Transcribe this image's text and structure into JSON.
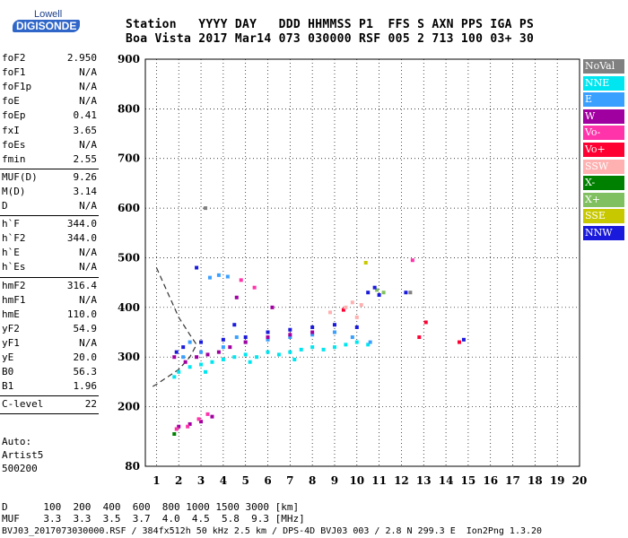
{
  "logo": {
    "line1": "Lowell",
    "line2": "DIGISONDE"
  },
  "header": {
    "line1": "Station   YYYY DAY   DDD HHMMSS P1  FFS S AXN PPS IGA PS",
    "line2": "Boa Vista 2017 Mar14 073 030000 RSF 005 2 713 100 03+ 30"
  },
  "params": [
    {
      "group": [
        {
          "name": "foF2",
          "value": "2.950"
        },
        {
          "name": "foF1",
          "value": "N/A"
        },
        {
          "name": "foF1p",
          "value": "N/A"
        },
        {
          "name": "foE",
          "value": "N/A"
        },
        {
          "name": "foEp",
          "value": "0.41"
        },
        {
          "name": "fxI",
          "value": "3.65"
        },
        {
          "name": "foEs",
          "value": "N/A"
        },
        {
          "name": "fmin",
          "value": "2.55"
        }
      ]
    },
    {
      "group": [
        {
          "name": "MUF(D)",
          "value": "9.26"
        },
        {
          "name": "M(D)",
          "value": "3.14"
        },
        {
          "name": "D",
          "value": "N/A"
        }
      ]
    },
    {
      "group": [
        {
          "name": "h`F",
          "value": "344.0"
        },
        {
          "name": "h`F2",
          "value": "344.0"
        },
        {
          "name": "h`E",
          "value": "N/A"
        },
        {
          "name": "h`Es",
          "value": "N/A"
        }
      ]
    },
    {
      "group": [
        {
          "name": "hmF2",
          "value": "316.4"
        },
        {
          "name": "hmF1",
          "value": "N/A"
        },
        {
          "name": "hmE",
          "value": "110.0"
        },
        {
          "name": "yF2",
          "value": "54.9"
        },
        {
          "name": "yF1",
          "value": "N/A"
        },
        {
          "name": "yE",
          "value": "20.0"
        },
        {
          "name": "B0",
          "value": "56.3"
        },
        {
          "name": "B1",
          "value": "1.96"
        }
      ]
    },
    {
      "group": [
        {
          "name": "C-level",
          "value": "22"
        }
      ]
    }
  ],
  "autoscale": {
    "line1": "Auto:",
    "line2": "Artist5",
    "line3": "500200"
  },
  "legend": [
    {
      "label": "NoVal",
      "color": "#808080"
    },
    {
      "label": "NNE",
      "color": "#00e6f0"
    },
    {
      "label": "E",
      "color": "#3aa0ff"
    },
    {
      "label": "W",
      "color": "#a000a0"
    },
    {
      "label": "Vo-",
      "color": "#ff33aa"
    },
    {
      "label": "Vo+",
      "color": "#ff0033"
    },
    {
      "label": "SSW",
      "color": "#ffb0b0"
    },
    {
      "label": "X-",
      "color": "#008000"
    },
    {
      "label": "X+",
      "color": "#80c060"
    },
    {
      "label": "SSE",
      "color": "#c8c800"
    },
    {
      "label": "NNW",
      "color": "#1a1adc"
    }
  ],
  "footer": {
    "d_row": "D      100  200  400  600  800 1000 1500 3000 [km]",
    "muf_row": "MUF    3.3  3.3  3.5  3.7  4.0  4.5  5.8  9.3 [MHz]",
    "info": "BVJ03_2017073030000.RSF / 384fx512h 50 kHz 2.5 km / DPS-4D BVJ03 003 / 2.8 N 299.3 E  Ion2Png 1.3.20"
  },
  "chart_data": {
    "type": "scatter",
    "xlim": [
      0.5,
      20
    ],
    "ylim": [
      80,
      900
    ],
    "x_ticks": [
      1,
      2,
      3,
      4,
      5,
      6,
      7,
      8,
      9,
      10,
      11,
      12,
      13,
      14,
      15,
      16,
      17,
      18,
      19,
      20
    ],
    "y_ticks": [
      80,
      200,
      300,
      400,
      500,
      600,
      700,
      800,
      900
    ],
    "grid": true,
    "series": [
      {
        "name": "NNE",
        "color": "#00e6f0",
        "points": [
          [
            2.0,
            270
          ],
          [
            2.5,
            280
          ],
          [
            3.0,
            285
          ],
          [
            3.5,
            290
          ],
          [
            4.0,
            295
          ],
          [
            4.5,
            300
          ],
          [
            5.0,
            305
          ],
          [
            5.5,
            300
          ],
          [
            6.0,
            310
          ],
          [
            6.5,
            305
          ],
          [
            7.0,
            310
          ],
          [
            7.5,
            315
          ],
          [
            8.0,
            320
          ],
          [
            8.5,
            315
          ],
          [
            9.0,
            320
          ],
          [
            9.5,
            325
          ],
          [
            10.0,
            330
          ],
          [
            10.5,
            325
          ],
          [
            1.8,
            260
          ],
          [
            3.2,
            270
          ],
          [
            5.2,
            290
          ],
          [
            7.2,
            295
          ]
        ]
      },
      {
        "name": "E",
        "color": "#3aa0ff",
        "points": [
          [
            2.2,
            300
          ],
          [
            3.0,
            310
          ],
          [
            4.0,
            320
          ],
          [
            5.0,
            330
          ],
          [
            6.0,
            335
          ],
          [
            7.0,
            340
          ],
          [
            8.0,
            345
          ],
          [
            9.0,
            350
          ],
          [
            9.8,
            340
          ],
          [
            10.6,
            330
          ],
          [
            3.4,
            460
          ],
          [
            3.8,
            465
          ],
          [
            4.2,
            462
          ],
          [
            2.5,
            330
          ],
          [
            4.6,
            340
          ]
        ]
      },
      {
        "name": "W",
        "color": "#a000a0",
        "points": [
          [
            1.8,
            300
          ],
          [
            2.3,
            290
          ],
          [
            2.8,
            300
          ],
          [
            3.3,
            305
          ],
          [
            3.8,
            310
          ],
          [
            4.3,
            320
          ],
          [
            5.0,
            330
          ],
          [
            6.0,
            340
          ],
          [
            7.0,
            345
          ],
          [
            8.0,
            350
          ],
          [
            2.0,
            160
          ],
          [
            2.5,
            165
          ],
          [
            3.0,
            170
          ],
          [
            3.5,
            180
          ],
          [
            4.6,
            420
          ],
          [
            6.2,
            400
          ]
        ]
      },
      {
        "name": "Vo-",
        "color": "#ff33aa",
        "points": [
          [
            1.9,
            155
          ],
          [
            2.4,
            160
          ],
          [
            2.9,
            175
          ],
          [
            3.3,
            185
          ],
          [
            12.5,
            495
          ],
          [
            4.8,
            455
          ],
          [
            5.4,
            440
          ]
        ]
      },
      {
        "name": "Vo+",
        "color": "#ff0033",
        "points": [
          [
            12.8,
            340
          ],
          [
            13.1,
            370
          ],
          [
            14.6,
            330
          ],
          [
            9.4,
            395
          ]
        ]
      },
      {
        "name": "SSW",
        "color": "#ffb0b0",
        "points": [
          [
            9.5,
            400
          ],
          [
            9.8,
            410
          ],
          [
            10.2,
            405
          ],
          [
            8.8,
            390
          ],
          [
            10.0,
            380
          ]
        ]
      },
      {
        "name": "X-",
        "color": "#008000",
        "points": [
          [
            1.8,
            145
          ]
        ]
      },
      {
        "name": "X+",
        "color": "#80c060",
        "points": [
          [
            10.9,
            435
          ],
          [
            11.2,
            430
          ]
        ]
      },
      {
        "name": "SSE",
        "color": "#c8c800",
        "points": [
          [
            10.4,
            490
          ]
        ]
      },
      {
        "name": "NNW",
        "color": "#1a1adc",
        "points": [
          [
            2.2,
            320
          ],
          [
            3.0,
            330
          ],
          [
            4.0,
            335
          ],
          [
            5.0,
            340
          ],
          [
            6.0,
            350
          ],
          [
            7.0,
            355
          ],
          [
            8.0,
            360
          ],
          [
            9.0,
            365
          ],
          [
            10.0,
            360
          ],
          [
            10.5,
            430
          ],
          [
            10.8,
            440
          ],
          [
            11.0,
            425
          ],
          [
            12.2,
            430
          ],
          [
            14.8,
            335
          ],
          [
            1.9,
            310
          ],
          [
            2.8,
            480
          ],
          [
            4.5,
            365
          ]
        ]
      },
      {
        "name": "NoVal",
        "color": "#808080",
        "points": [
          [
            12.4,
            430
          ],
          [
            3.2,
            600
          ]
        ]
      }
    ],
    "fitted_profile": [
      [
        1.0,
        480
      ],
      [
        1.5,
        430
      ],
      [
        2.0,
        380
      ],
      [
        2.5,
        345
      ],
      [
        2.8,
        325
      ],
      [
        2.5,
        300
      ],
      [
        2.0,
        275
      ],
      [
        1.5,
        260
      ],
      [
        1.0,
        245
      ],
      [
        0.8,
        240
      ]
    ]
  }
}
